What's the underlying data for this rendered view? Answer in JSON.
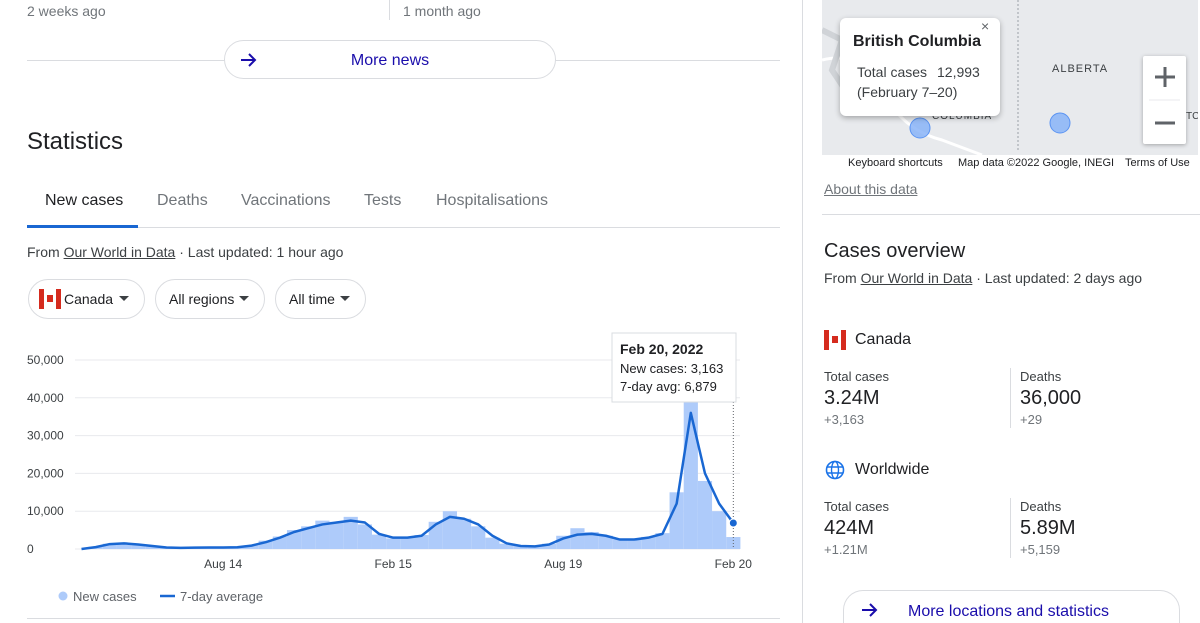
{
  "news": {
    "items": [
      "2 weeks ago",
      "1 month ago"
    ],
    "more_button": "More news"
  },
  "statistics": {
    "title": "Statistics",
    "tabs": [
      "New cases",
      "Deaths",
      "Vaccinations",
      "Tests",
      "Hospitalisations"
    ],
    "source": {
      "prefix": "From",
      "link": "Our World in Data",
      "updated": "· Last updated: 1 hour ago"
    },
    "filters": [
      "Canada",
      "All regions",
      "All time"
    ]
  },
  "chart_data": {
    "type": "bar_line",
    "categories": [
      null,
      null,
      null,
      null,
      null,
      null,
      null,
      null,
      null,
      null,
      "Aug 14",
      null,
      null,
      null,
      null,
      null,
      null,
      null,
      null,
      null,
      null,
      null,
      "Feb 15",
      null,
      null,
      null,
      null,
      null,
      null,
      null,
      null,
      null,
      null,
      null,
      "Aug 19",
      null,
      null,
      null,
      null,
      null,
      null,
      null,
      null,
      null,
      null,
      null,
      "Feb 20"
    ],
    "series": [
      {
        "name": "New cases",
        "color": "#aecbfa",
        "values": [
          0,
          600,
          1400,
          1300,
          1100,
          700,
          450,
          350,
          400,
          450,
          450,
          500,
          1000,
          2200,
          3300,
          5000,
          6000,
          7500,
          7200,
          8500,
          6500,
          3800,
          2800,
          3200,
          3700,
          7200,
          10000,
          8000,
          6000,
          3000,
          1400,
          900,
          800,
          1400,
          3500,
          5500,
          4500,
          3500,
          2600,
          2600,
          3200,
          4200,
          15000,
          40000,
          18000,
          10000,
          3163
        ]
      },
      {
        "name": "7-day average",
        "color": "#1967d2",
        "values": [
          0,
          500,
          1300,
          1500,
          1200,
          800,
          400,
          300,
          350,
          400,
          400,
          450,
          900,
          1800,
          3000,
          4500,
          5500,
          6500,
          7000,
          7500,
          7000,
          4000,
          3000,
          3000,
          3500,
          6500,
          8500,
          8000,
          6500,
          3500,
          1500,
          800,
          700,
          1200,
          2800,
          3800,
          4000,
          3500,
          2500,
          2500,
          3000,
          4000,
          12000,
          36000,
          20000,
          12000,
          6879
        ]
      }
    ],
    "ylim": [
      0,
      50000
    ],
    "yticks": [
      0,
      {
        "value": 10000,
        "label": "10,000"
      },
      {
        "value": 20000,
        "label": "20,000"
      },
      {
        "value": 30000,
        "label": "30,000"
      },
      {
        "value": 40000,
        "label": "40,000"
      },
      {
        "value": 50000,
        "label": "50,000"
      }
    ],
    "grid": true,
    "tooltip": {
      "title": "Feb 20, 2022",
      "lines": [
        "New cases: 3,163",
        "7-day avg: 6,879"
      ]
    }
  },
  "map": {
    "popup": {
      "title": "British Columbia",
      "label": "Total cases",
      "value": "12,993",
      "period": "(February 7–20)"
    },
    "region_labels": [
      "ALBERTA",
      "COLUMBIA",
      "TC"
    ],
    "footer": [
      "Keyboard shortcuts",
      "Map data ©2022 Google, INEGI",
      "Terms of Use"
    ],
    "about": "About this data"
  },
  "cases_overview": {
    "title": "Cases overview",
    "source": {
      "prefix": "From",
      "link": "Our World in Data",
      "updated": "· Last updated: 2 days ago"
    },
    "locations": [
      {
        "name": "Canada",
        "stats": [
          {
            "label": "Total cases",
            "value": "3.24M",
            "change": "+3,163"
          },
          {
            "label": "Deaths",
            "value": "36,000",
            "change": "+29"
          }
        ]
      },
      {
        "name": "Worldwide",
        "stats": [
          {
            "label": "Total cases",
            "value": "424M",
            "change": "+1.21M"
          },
          {
            "label": "Deaths",
            "value": "5.89M",
            "change": "+5,159"
          }
        ]
      }
    ],
    "more_button": "More locations and statistics"
  }
}
